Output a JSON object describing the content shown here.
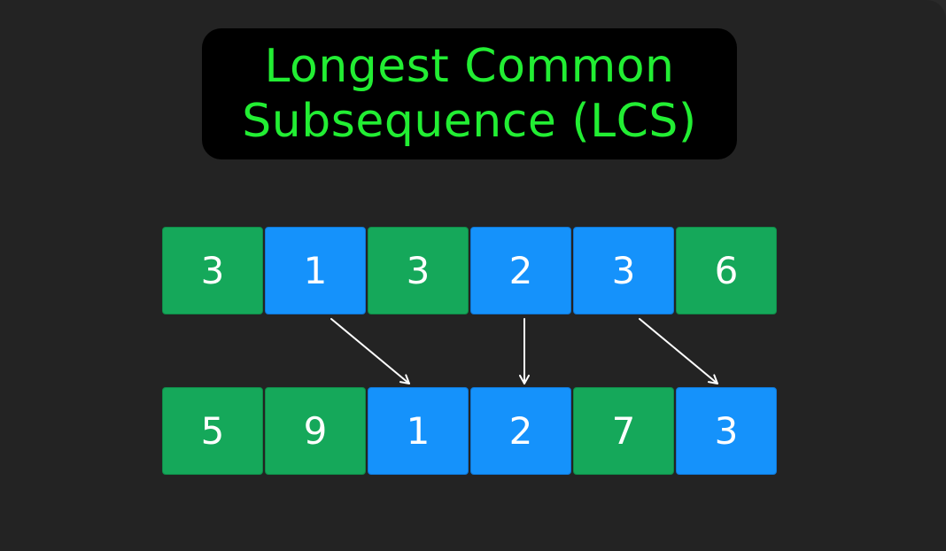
{
  "title": {
    "line1": "Longest Common",
    "line2": "Subsequence (LCS)"
  },
  "colors": {
    "background": "#232323",
    "title_text": "#22ee33",
    "title_box": "#000000",
    "green_cell": "#15a85a",
    "blue_cell": "#1592fb",
    "arrow": "#ffffff"
  },
  "sequence_top": [
    {
      "value": "3",
      "color": "green"
    },
    {
      "value": "1",
      "color": "blue"
    },
    {
      "value": "3",
      "color": "green"
    },
    {
      "value": "2",
      "color": "blue"
    },
    {
      "value": "3",
      "color": "blue"
    },
    {
      "value": "6",
      "color": "green"
    }
  ],
  "sequence_bottom": [
    {
      "value": "5",
      "color": "green"
    },
    {
      "value": "9",
      "color": "green"
    },
    {
      "value": "1",
      "color": "blue"
    },
    {
      "value": "2",
      "color": "blue"
    },
    {
      "value": "7",
      "color": "green"
    },
    {
      "value": "3",
      "color": "blue"
    }
  ],
  "matches": [
    {
      "from_index": 1,
      "to_index": 2
    },
    {
      "from_index": 3,
      "to_index": 3
    },
    {
      "from_index": 4,
      "to_index": 5
    }
  ]
}
